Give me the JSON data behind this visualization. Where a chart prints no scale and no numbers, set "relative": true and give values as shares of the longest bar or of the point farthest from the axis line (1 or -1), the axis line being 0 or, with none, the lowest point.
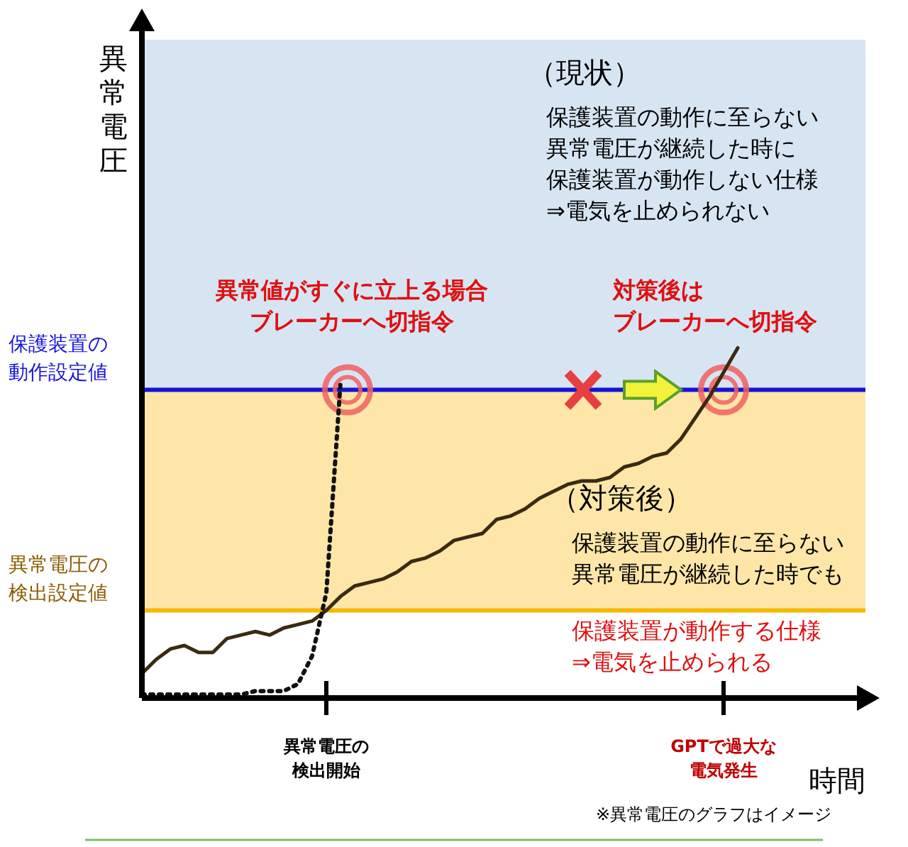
{
  "chart_data": {
    "type": "line",
    "relative": true,
    "xlabel": "時間",
    "categories": [
      null,
      null,
      null,
      null,
      null,
      null,
      null,
      null,
      null,
      null,
      null,
      null,
      null,
      "異常電圧の検出開始",
      null,
      null,
      null,
      null,
      null,
      null,
      null,
      null,
      null,
      null,
      null,
      null,
      null,
      null,
      null,
      null,
      null,
      null,
      null,
      null,
      null,
      null,
      null,
      null,
      null,
      null,
      null,
      "GPTで過大な電気発生",
      null
    ],
    "series": [
      {
        "color": "#3a2a12",
        "line_style": "solid",
        "values": [
          0.07,
          0.11,
          0.14,
          0.15,
          0.13,
          0.13,
          0.17,
          0.18,
          0.19,
          0.18,
          0.2,
          0.21,
          0.22,
          0.25,
          0.29,
          0.32,
          0.33,
          0.34,
          0.36,
          0.39,
          0.4,
          0.42,
          0.45,
          0.46,
          0.47,
          0.51,
          0.52,
          0.54,
          0.57,
          0.59,
          0.61,
          0.62,
          0.62,
          0.63,
          0.66,
          0.67,
          0.69,
          0.7,
          0.74,
          0.8,
          0.86,
          0.93,
          1
        ]
      },
      {
        "color": "#111111",
        "line_style": "dotted",
        "values": [
          0.01,
          0.01,
          0.01,
          0.01,
          0.01,
          0.01,
          0.01,
          0.01,
          0.02,
          0.02,
          0.02,
          0.04,
          0.12,
          0.3,
          0.9,
          null,
          null,
          null,
          null,
          null,
          null,
          null,
          null,
          null,
          null,
          null,
          null,
          null,
          null,
          null,
          null,
          null,
          null,
          null,
          null,
          null,
          null,
          null,
          null,
          null,
          null,
          null,
          null
        ]
      }
    ],
    "bands": [
      {
        "axis": "y",
        "from": 0.88,
        "to": 1.88,
        "color": "#d7e5f3"
      },
      {
        "axis": "y",
        "from": 0.25,
        "to": 0.88,
        "color": "#fde6a8"
      }
    ],
    "ref_lines": [
      {
        "axis": "y",
        "value": 0.88,
        "label": "保護装置の動作設定値",
        "color": "#1414d8"
      },
      {
        "axis": "y",
        "value": 0.25,
        "label": "異常電圧の検出設定値",
        "color": "#f5b800"
      }
    ],
    "annotations": [
      "（現状）",
      "保護装置の動作に至らない",
      "異常電圧が継続した時に",
      "保護装置が動作しない仕様",
      "⇒電気を止められない",
      "異常値がすぐに立上る場合",
      "ブレーカーへ切指令",
      "対策後は",
      "ブレーカーへ切指令",
      "（対策後）",
      "保護装置の動作に至らない",
      "異常電圧が継続した時でも",
      "保護装置が動作する仕様",
      "⇒電気を止められる",
      "※異常電圧のグラフはイメージ",
      "異常電圧"
    ]
  }
}
